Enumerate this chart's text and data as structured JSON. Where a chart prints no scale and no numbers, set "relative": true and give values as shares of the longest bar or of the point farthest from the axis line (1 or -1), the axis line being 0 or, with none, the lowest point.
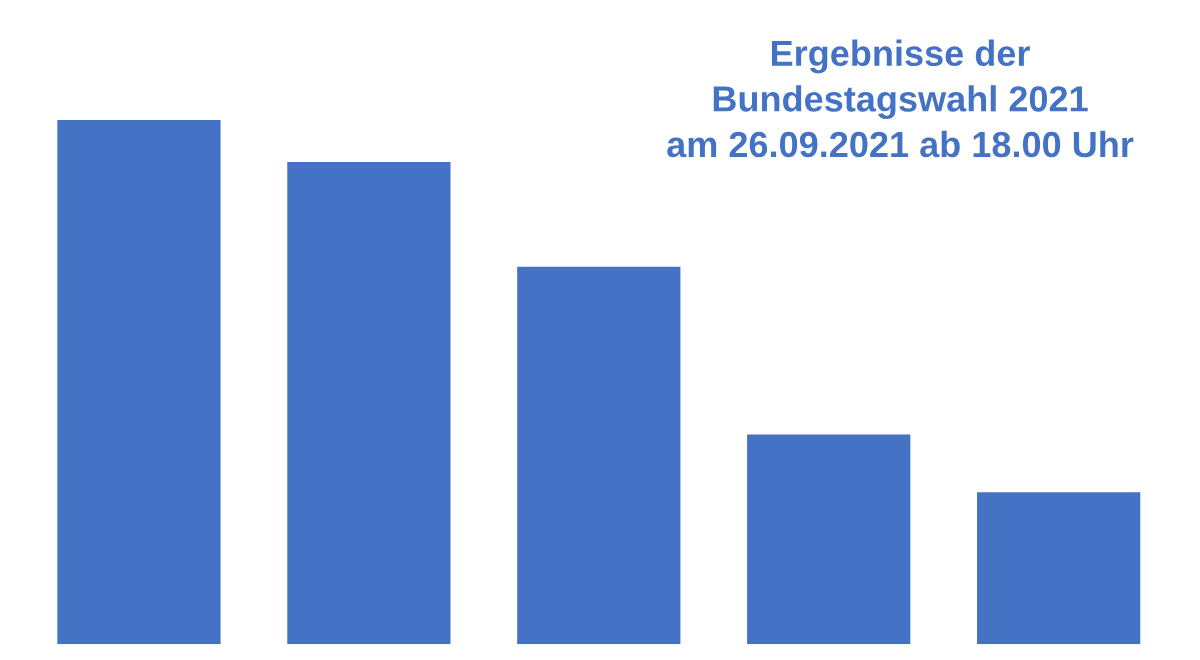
{
  "chart_data": {
    "type": "bar",
    "title": "Ergebnisse der\nBundestagswahl 2021\nam 26.09.2021 ab 18.00 Uhr",
    "categories": [
      null,
      null,
      null,
      null,
      null
    ],
    "values": [
      1,
      0.92,
      0.72,
      0.4,
      0.29
    ],
    "color": "#4472c4",
    "relative": true
  }
}
